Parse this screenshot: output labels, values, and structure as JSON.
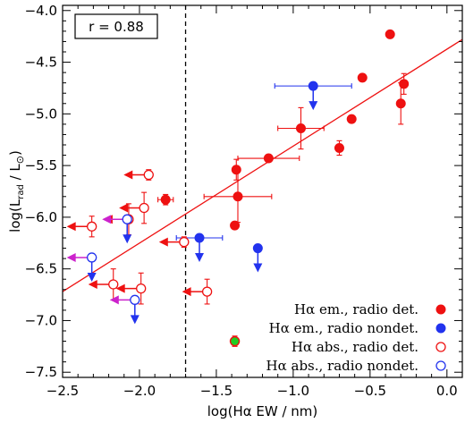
{
  "chart_data": {
    "type": "scatter",
    "xlabel": "log(Hα EW / nm)",
    "ylabel": "log(L_rad / L☉)",
    "ylabel_main": "log(L",
    "ylabel_sub": "rad",
    "ylabel_tail": " / L",
    "ylabel_sun": "⊙",
    "ylabel_close": ")",
    "xlim": [
      -2.5,
      0.1
    ],
    "ylim": [
      -7.55,
      -3.95
    ],
    "xticks": [
      -2.5,
      -2.0,
      -1.5,
      -1.0,
      -0.5,
      0.0
    ],
    "xtick_labels": [
      "−2.5",
      "−2.0",
      "−1.5",
      "−1.0",
      "−0.5",
      "0.0"
    ],
    "yticks": [
      -7.5,
      -7.0,
      -6.5,
      -6.0,
      -5.5,
      -5.0,
      -4.5,
      -4.0
    ],
    "ytick_labels": [
      "−7.5",
      "−7.0",
      "−6.5",
      "−6.0",
      "−5.5",
      "−5.0",
      "−4.5",
      "−4.0"
    ],
    "annotation": "r = 0.88",
    "vline_x": -1.7,
    "fit_line": {
      "x": [
        -2.5,
        0.1
      ],
      "y": [
        -6.72,
        -4.28
      ]
    },
    "colors": {
      "red": "#ee1111",
      "blue": "#2233ee",
      "green": "#22cc22",
      "magenta": "#cc22cc"
    },
    "legend": [
      {
        "label": "Hα em., radio det.",
        "color": "#ee1111",
        "filled": true
      },
      {
        "label": "Hα em., radio nondet.",
        "color": "#2233ee",
        "filled": true
      },
      {
        "label": "Hα abs., radio det.",
        "color": "#ee1111",
        "filled": false
      },
      {
        "label": "Hα abs., radio nondet.",
        "color": "#2233ee",
        "filled": false
      }
    ],
    "series": [
      {
        "name": "Hα em., radio det.",
        "points": [
          {
            "x": -0.37,
            "y": -4.23
          },
          {
            "x": -0.55,
            "y": -4.65
          },
          {
            "x": -0.28,
            "y": -4.71,
            "yerr": 0.1
          },
          {
            "x": -0.3,
            "y": -4.9,
            "yerr": 0.2
          },
          {
            "x": -0.62,
            "y": -5.05
          },
          {
            "x": -0.95,
            "y": -5.14,
            "xerr": 0.15,
            "yerr": 0.2
          },
          {
            "x": -0.7,
            "y": -5.33,
            "yerr": 0.07
          },
          {
            "x": -1.16,
            "y": -5.43,
            "xerr": 0.2
          },
          {
            "x": -1.37,
            "y": -5.54,
            "yerr": 0.1
          },
          {
            "x": -1.36,
            "y": -5.8,
            "xerr": 0.22,
            "yerr": 0.25
          },
          {
            "x": -1.38,
            "y": -6.08
          },
          {
            "x": -1.83,
            "y": -5.83,
            "xerr": 0.05,
            "yerr": 0.05
          }
        ]
      },
      {
        "name": "Hα em., radio nondet.",
        "points": [
          {
            "x": -0.87,
            "y": -4.73,
            "xerr": 0.25,
            "upper": true
          },
          {
            "x": -1.61,
            "y": -6.2,
            "xerr": 0.15,
            "upper": true
          },
          {
            "x": -1.23,
            "y": -6.3,
            "upper": true
          }
        ]
      },
      {
        "name": "Hα abs., radio det.",
        "points": [
          {
            "x": -1.94,
            "y": -5.59,
            "left": true,
            "yerr": 0.05
          },
          {
            "x": -1.97,
            "y": -5.91,
            "left": true,
            "yerr": 0.15
          },
          {
            "x": -2.07,
            "y": -6.02,
            "left": true,
            "yerr": 0.15
          },
          {
            "x": -2.31,
            "y": -6.09,
            "left": true,
            "yerr": 0.1
          },
          {
            "x": -1.71,
            "y": -6.24,
            "left": true,
            "yerr": 0.05
          },
          {
            "x": -2.17,
            "y": -6.65,
            "left": true,
            "yerr": 0.15
          },
          {
            "x": -1.99,
            "y": -6.69,
            "left": true,
            "yerr": 0.15
          },
          {
            "x": -1.56,
            "y": -6.72,
            "left": true,
            "yerr": 0.12
          }
        ]
      },
      {
        "name": "Hα abs., radio nondet.",
        "points": [
          {
            "x": -2.31,
            "y": -6.39,
            "left": true,
            "upper": true
          },
          {
            "x": -2.03,
            "y": -6.8,
            "left": true,
            "upper": true
          },
          {
            "x": -2.08,
            "y": -6.02,
            "left": true,
            "upper": true
          }
        ]
      },
      {
        "points": [
          {
            "x": -1.38,
            "y": -7.2,
            "yerr": 0.05
          }
        ]
      }
    ]
  }
}
